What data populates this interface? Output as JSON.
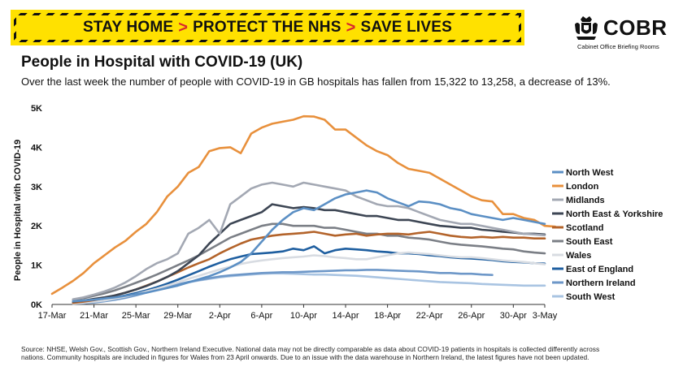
{
  "banner": {
    "part1": "STAY HOME",
    "part2": "PROTECT THE NHS",
    "part3": "SAVE LIVES",
    "separator": ">"
  },
  "logo": {
    "name": "COBR",
    "tagline": "Cabinet Office Briefing Rooms",
    "icon": "royal-crest-icon"
  },
  "title": "People in Hospital with COVID-19 (UK)",
  "subtitle": "Over the last week the number of people with COVID-19 in GB hospitals has fallen from 15,322 to 13,258, a decrease of 13%.",
  "footer": {
    "line1": "Source: NHSE, Welsh Gov., Scottish Gov., Northern Ireland Executive. National data may not be directly comparable as data about COVID-19 patients in hospitals is collected differently across",
    "line2": "nations. Community hospitals are included in figures for Wales from 23 April onwards. Due to an issue with the data warehouse in Northern Ireland, the latest figures have not been updated."
  },
  "chart_data": {
    "type": "line",
    "title": "",
    "xlabel": "",
    "ylabel": "People in Hospital with COVID-19",
    "ylim": [
      0,
      5000
    ],
    "yticks": [
      0,
      1000,
      2000,
      3000,
      4000,
      5000
    ],
    "ytick_labels": [
      "0K",
      "1K",
      "2K",
      "3K",
      "4K",
      "5K"
    ],
    "x_start": "17-Mar",
    "x_end": "3-May",
    "xtick_labels": [
      "17-Mar",
      "21-Mar",
      "25-Mar",
      "29-Mar",
      "2-Apr",
      "6-Apr",
      "10-Apr",
      "14-Apr",
      "18-Apr",
      "22-Apr",
      "26-Apr",
      "30-Apr",
      "3-May"
    ],
    "xtick_days": [
      0,
      4,
      8,
      12,
      16,
      20,
      24,
      28,
      32,
      36,
      40,
      44,
      47
    ],
    "grid": false,
    "legend": "right",
    "series": [
      {
        "name": "North West",
        "color": "#5b8fc4",
        "start": 2,
        "values": [
          80,
          100,
          120,
          150,
          180,
          220,
          260,
          300,
          360,
          420,
          480,
          560,
          640,
          720,
          820,
          940,
          1080,
          1300,
          1600,
          1900,
          2150,
          2350,
          2450,
          2400,
          2550,
          2700,
          2800,
          2850,
          2900,
          2850,
          2700,
          2600,
          2500,
          2620,
          2600,
          2550,
          2450,
          2400,
          2300,
          2250,
          2200,
          2150,
          2200,
          2150,
          2100,
          2050
        ]
      },
      {
        "name": "London",
        "color": "#e8903c",
        "start": 0,
        "values": [
          270,
          430,
          600,
          800,
          1050,
          1250,
          1450,
          1620,
          1850,
          2050,
          2350,
          2750,
          3000,
          3350,
          3500,
          3900,
          3980,
          4000,
          3850,
          4350,
          4500,
          4600,
          4650,
          4700,
          4790,
          4780,
          4700,
          4450,
          4450,
          4250,
          4050,
          3900,
          3800,
          3600,
          3450,
          3400,
          3350,
          3200,
          3050,
          2900,
          2750,
          2650,
          2620,
          2300,
          2300,
          2200,
          2150,
          2000,
          1980
        ]
      },
      {
        "name": "Midlands",
        "color": "#a3a8b3",
        "start": 2,
        "values": [
          130,
          180,
          250,
          330,
          430,
          560,
          720,
          900,
          1050,
          1150,
          1300,
          1800,
          1950,
          2150,
          1800,
          2550,
          2750,
          2950,
          3050,
          3100,
          3050,
          3000,
          3100,
          3050,
          3000,
          2950,
          2900,
          2750,
          2650,
          2550,
          2500,
          2500,
          2450,
          2350,
          2250,
          2150,
          2100,
          2050,
          2050,
          2000,
          1950,
          1900,
          1850,
          1800,
          1780,
          1760
        ]
      },
      {
        "name": "North East & Yorkshire",
        "color": "#3d4654",
        "start": 2,
        "values": [
          70,
          100,
          140,
          180,
          230,
          300,
          380,
          470,
          580,
          700,
          850,
          1050,
          1250,
          1550,
          1800,
          2050,
          2150,
          2250,
          2350,
          2550,
          2500,
          2450,
          2480,
          2450,
          2400,
          2400,
          2350,
          2300,
          2250,
          2250,
          2200,
          2150,
          2150,
          2100,
          2050,
          2000,
          1980,
          1950,
          1950,
          1900,
          1880,
          1850,
          1830,
          1800,
          1800,
          1780
        ]
      },
      {
        "name": "Scotland",
        "color": "#b3632a",
        "start": 2,
        "values": [
          40,
          70,
          110,
          160,
          230,
          300,
          380,
          480,
          580,
          700,
          820,
          940,
          1050,
          1150,
          1300,
          1430,
          1550,
          1650,
          1700,
          1750,
          1780,
          1800,
          1820,
          1850,
          1800,
          1750,
          1780,
          1800,
          1750,
          1780,
          1800,
          1800,
          1780,
          1820,
          1850,
          1800,
          1750,
          1720,
          1700,
          1720,
          1700,
          1720,
          1700,
          1700,
          1680,
          1680
        ]
      },
      {
        "name": "South East",
        "color": "#7b7f86",
        "start": 2,
        "values": [
          120,
          160,
          220,
          280,
          360,
          450,
          550,
          650,
          760,
          880,
          1000,
          1120,
          1250,
          1400,
          1550,
          1700,
          1800,
          1900,
          2000,
          2050,
          2050,
          2000,
          2000,
          2000,
          1950,
          1950,
          1900,
          1850,
          1800,
          1800,
          1750,
          1750,
          1700,
          1680,
          1650,
          1600,
          1550,
          1520,
          1500,
          1480,
          1450,
          1420,
          1400,
          1350,
          1320,
          1300
        ]
      },
      {
        "name": "Wales",
        "color": "#d8dce2",
        "start": 2,
        "values": [
          20,
          40,
          70,
          100,
          150,
          200,
          260,
          330,
          400,
          480,
          560,
          650,
          730,
          810,
          890,
          960,
          1030,
          1080,
          1120,
          1150,
          1180,
          1200,
          1220,
          1250,
          1230,
          1200,
          1180,
          1150,
          1150,
          1200,
          1250,
          1300,
          1320,
          1300,
          1280,
          1250,
          1220,
          1200,
          1200,
          1180,
          1150,
          1120,
          1100,
          1080,
          1050,
          1020
        ]
      },
      {
        "name": "East of England",
        "color": "#1f5fa0",
        "start": 2,
        "values": [
          60,
          80,
          110,
          140,
          180,
          230,
          290,
          360,
          440,
          530,
          630,
          740,
          850,
          960,
          1060,
          1150,
          1220,
          1280,
          1300,
          1320,
          1350,
          1420,
          1380,
          1480,
          1300,
          1380,
          1420,
          1400,
          1380,
          1350,
          1330,
          1300,
          1300,
          1280,
          1250,
          1230,
          1200,
          1180,
          1170,
          1150,
          1130,
          1100,
          1080,
          1070,
          1050,
          1040
        ]
      },
      {
        "name": "Northern Ireland",
        "color": "#6d97c8",
        "start": 2,
        "values": [
          20,
          30,
          50,
          80,
          120,
          170,
          230,
          300,
          370,
          440,
          510,
          570,
          620,
          670,
          710,
          740,
          760,
          780,
          800,
          810,
          820,
          820,
          830,
          840,
          850,
          860,
          870,
          870,
          880,
          880,
          870,
          860,
          850,
          840,
          820,
          800,
          800,
          780,
          780,
          760,
          750
        ]
      },
      {
        "name": "South West",
        "color": "#a9c4e2",
        "start": 2,
        "values": [
          30,
          50,
          80,
          110,
          150,
          200,
          260,
          320,
          380,
          440,
          500,
          560,
          610,
          650,
          690,
          720,
          740,
          760,
          780,
          790,
          790,
          780,
          770,
          760,
          760,
          750,
          740,
          730,
          710,
          690,
          670,
          650,
          630,
          610,
          590,
          570,
          560,
          550,
          540,
          520,
          510,
          500,
          490,
          480,
          480,
          480
        ]
      }
    ]
  }
}
